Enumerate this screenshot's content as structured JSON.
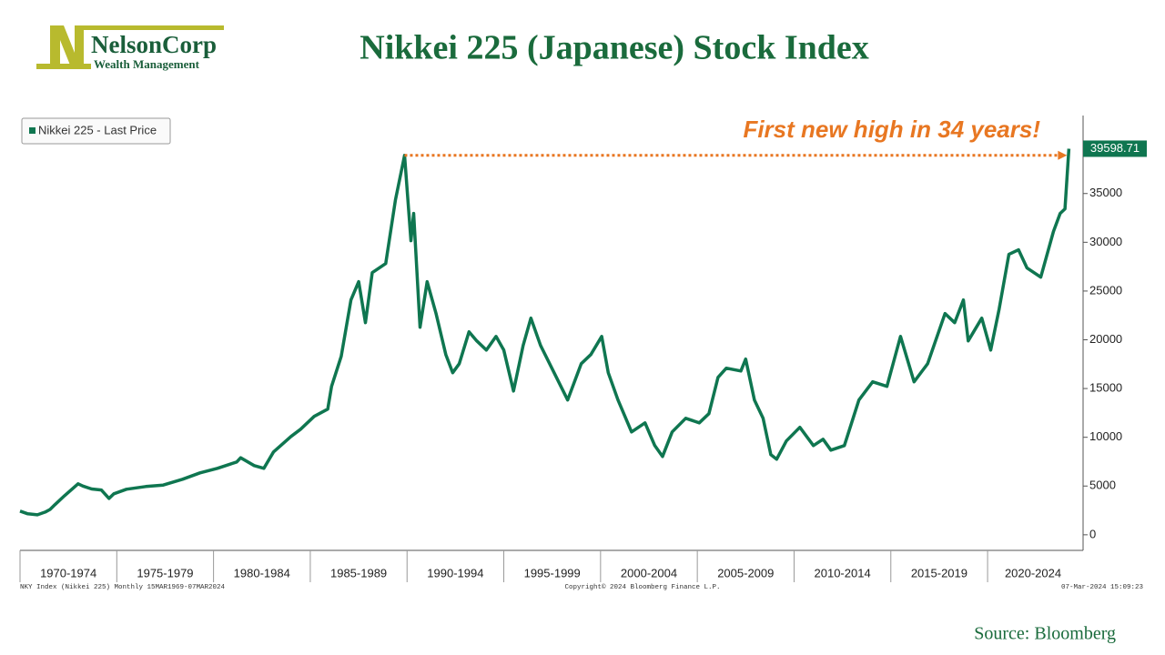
{
  "header": {
    "logo_name": "NelsonCorp",
    "logo_tagline": "Wealth Management"
  },
  "chart_data": {
    "type": "line",
    "title": "Nikkei 225 (Japanese) Stock Index",
    "annotation": "First new high in 34 years!",
    "x": [
      1970.0,
      1970.4,
      1970.9,
      1971.3,
      1971.55,
      1971.8,
      1972.3,
      1973.0,
      1973.25,
      1973.7,
      1974.2,
      1974.6,
      1974.85,
      1975.5,
      1976.5,
      1977.4,
      1978.4,
      1979.3,
      1980.2,
      1981.2,
      1981.4,
      1982.1,
      1982.6,
      1983.1,
      1984.0,
      1984.5,
      1985.2,
      1985.9,
      1986.1,
      1986.6,
      1987.1,
      1987.5,
      1987.85,
      1988.2,
      1988.9,
      1989.4,
      1989.87,
      1990.2,
      1990.34,
      1990.67,
      1991.04,
      1991.5,
      1992.0,
      1992.36,
      1992.7,
      1993.2,
      1993.6,
      1994.1,
      1994.6,
      1995.0,
      1995.5,
      1996.0,
      1996.4,
      1996.9,
      1997.6,
      1998.3,
      1999.0,
      1999.5,
      2000.06,
      2000.4,
      2000.9,
      2001.6,
      2002.3,
      2002.8,
      2003.2,
      2003.7,
      2004.4,
      2005.1,
      2005.6,
      2006.07,
      2006.5,
      2007.25,
      2007.5,
      2007.95,
      2008.4,
      2008.8,
      2009.1,
      2009.6,
      2010.3,
      2011.0,
      2011.5,
      2011.9,
      2012.6,
      2013.35,
      2014.06,
      2014.8,
      2015.5,
      2016.2,
      2016.9,
      2017.8,
      2018.3,
      2018.75,
      2019.0,
      2019.7,
      2020.16,
      2020.6,
      2021.1,
      2021.6,
      2022.04,
      2022.75,
      2023.4,
      2023.75,
      2024.0,
      2024.2
    ],
    "series": [
      {
        "name": "Nikkei 225 - Last Price",
        "color": "#0f7650",
        "values": [
          2430,
          2150,
          2050,
          2330,
          2600,
          3080,
          4010,
          5230,
          5000,
          4700,
          4600,
          3730,
          4200,
          4670,
          4950,
          5100,
          5700,
          6350,
          6820,
          7470,
          7900,
          7100,
          6820,
          8500,
          10080,
          10830,
          12140,
          12890,
          15220,
          18300,
          24090,
          25960,
          21750,
          26890,
          27820,
          34360,
          38915,
          30160,
          32960,
          21290,
          25960,
          22690,
          18490,
          16620,
          17550,
          20820,
          19890,
          18950,
          20350,
          18950,
          14750,
          19420,
          22220,
          19420,
          16620,
          13820,
          17550,
          18490,
          20350,
          16620,
          13820,
          10550,
          11480,
          9150,
          8030,
          10550,
          11950,
          11480,
          12420,
          16150,
          17090,
          16800,
          18020,
          13820,
          11950,
          8220,
          7750,
          9620,
          11020,
          9150,
          9800,
          8680,
          9150,
          13820,
          15690,
          15220,
          20350,
          15690,
          17550,
          22690,
          21750,
          24090,
          19890,
          22220,
          18950,
          23160,
          28760,
          29230,
          27360,
          26420,
          31090,
          32960,
          33430,
          39598.71
        ]
      }
    ],
    "xlim": [
      1970,
      2024.7
    ],
    "xticks": [
      1970,
      1975,
      1980,
      1985,
      1990,
      1995,
      2000,
      2005,
      2010,
      2015,
      2020
    ],
    "categories": [
      "1970-1974",
      "1975-1979",
      "1980-1984",
      "1985-1989",
      "1990-1994",
      "1995-1999",
      "2000-2004",
      "2005-2009",
      "2010-2014",
      "2015-2019",
      "2020-2024"
    ],
    "ylim": [
      -1600,
      43000
    ],
    "yticks": [
      0,
      5000,
      10000,
      15000,
      20000,
      25000,
      30000,
      35000
    ],
    "legend": "top-left"
  },
  "footer": {
    "left": "NKY Index (Nikkei 225) Monthly 15MAR1969-07MAR2024",
    "center": "Copyright© 2024 Bloomberg Finance L.P.",
    "right": "07-Mar-2024 15:09:23",
    "source": "Source: Bloomberg"
  }
}
